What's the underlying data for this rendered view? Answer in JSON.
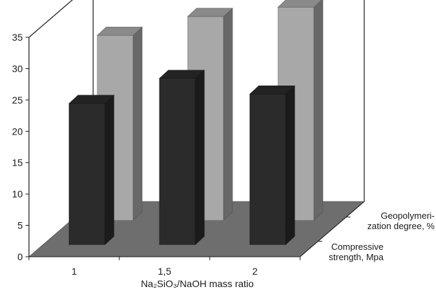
{
  "chart_data": {
    "type": "bar",
    "subtype": "3d-clustered",
    "categories": [
      "1",
      "1,5",
      "2"
    ],
    "series": [
      {
        "name": "Geopolymeri-\nzation degree, %",
        "values": [
          29.5,
          32.5,
          34.0
        ],
        "color": "#a8a8a8"
      },
      {
        "name": "Compressive\nstrength, Mpa",
        "values": [
          22.5,
          26.5,
          24.0
        ],
        "color": "#2b2b2b"
      }
    ],
    "ylim": [
      0,
      35
    ],
    "yticks": [
      0,
      5,
      10,
      15,
      20,
      25,
      30,
      35
    ],
    "xlabel": "Na₂SiO₃/NaOH mass ratio",
    "ylabel": "",
    "title": "",
    "grid": false,
    "floor_color": "#6e6e6e"
  }
}
